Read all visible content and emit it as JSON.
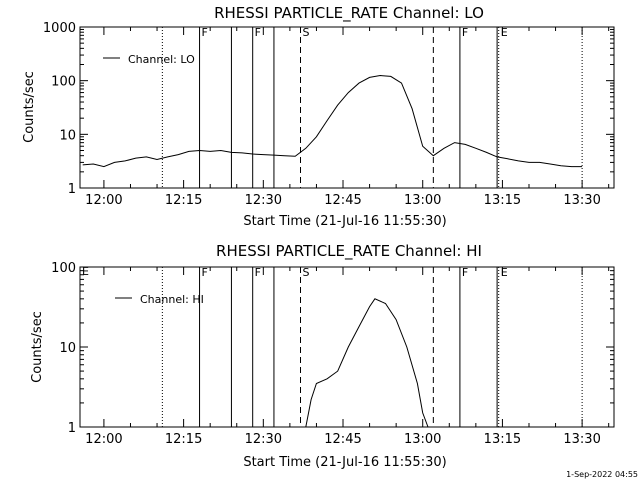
{
  "footer": {
    "timestamp": "1-Sep-2022 04:55"
  },
  "chart_data": [
    {
      "type": "line",
      "title": "RHESSI PARTICLE_RATE Channel: LO",
      "xlabel": "Start Time (21-Jul-16 11:55:30)",
      "ylabel": "Counts/sec",
      "x_ticks": [
        "12:00",
        "12:15",
        "12:30",
        "12:45",
        "13:00",
        "13:15",
        "13:30"
      ],
      "y_scale": "log",
      "ylim": [
        1,
        1000
      ],
      "y_ticks": [
        "1",
        "10",
        "100",
        "1000"
      ],
      "legend": {
        "label": "Channel: LO",
        "position": "top-left"
      },
      "markers": [
        {
          "time": "12:11",
          "style": "dotted",
          "label": ""
        },
        {
          "time": "12:18",
          "style": "solid",
          "label": "F"
        },
        {
          "time": "12:24",
          "style": "solid",
          "label": ""
        },
        {
          "time": "12:28",
          "style": "solid",
          "label": "F"
        },
        {
          "time": "12:32",
          "style": "solid",
          "label": ""
        },
        {
          "time": "12:37",
          "style": "dashed",
          "label": "S"
        },
        {
          "time": "13:02",
          "style": "dashed",
          "label": ""
        },
        {
          "time": "13:07",
          "style": "solid",
          "label": "F"
        },
        {
          "time": "13:14",
          "style": "solid",
          "label": ""
        },
        {
          "time": "13:14.3",
          "style": "dotted",
          "label": "E"
        },
        {
          "time": "13:30",
          "style": "dotted",
          "label": ""
        }
      ],
      "series": [
        {
          "name": "Channel: LO",
          "points": [
            [
              "11:56",
              2.7
            ],
            [
              "11:58",
              2.8
            ],
            [
              "12:00",
              2.5
            ],
            [
              "12:02",
              3.0
            ],
            [
              "12:04",
              3.2
            ],
            [
              "12:06",
              3.6
            ],
            [
              "12:08",
              3.8
            ],
            [
              "12:10",
              3.4
            ],
            [
              "12:12",
              3.8
            ],
            [
              "12:14",
              4.2
            ],
            [
              "12:16",
              4.8
            ],
            [
              "12:18",
              5.0
            ],
            [
              "12:20",
              4.8
            ],
            [
              "12:22",
              5.0
            ],
            [
              "12:24",
              4.6
            ],
            [
              "12:26",
              4.5
            ],
            [
              "12:28",
              4.3
            ],
            [
              "12:30",
              4.2
            ],
            [
              "12:32",
              4.1
            ],
            [
              "12:34",
              4.0
            ],
            [
              "12:36",
              3.9
            ],
            [
              "12:38",
              5.5
            ],
            [
              "12:40",
              9
            ],
            [
              "12:42",
              18
            ],
            [
              "12:44",
              35
            ],
            [
              "12:46",
              60
            ],
            [
              "12:48",
              90
            ],
            [
              "12:50",
              115
            ],
            [
              "12:52",
              125
            ],
            [
              "12:54",
              120
            ],
            [
              "12:56",
              90
            ],
            [
              "12:58",
              30
            ],
            [
              "13:00",
              6
            ],
            [
              "13:02",
              4.0
            ],
            [
              "13:04",
              5.5
            ],
            [
              "13:06",
              7.0
            ],
            [
              "13:08",
              6.5
            ],
            [
              "13:10",
              5.5
            ],
            [
              "13:12",
              4.6
            ],
            [
              "13:14",
              3.8
            ],
            [
              "13:16",
              3.5
            ],
            [
              "13:18",
              3.2
            ],
            [
              "13:20",
              3.0
            ],
            [
              "13:22",
              3.0
            ],
            [
              "13:24",
              2.8
            ],
            [
              "13:26",
              2.6
            ],
            [
              "13:28",
              2.5
            ],
            [
              "13:30",
              2.5
            ]
          ]
        }
      ]
    },
    {
      "type": "line",
      "title": "RHESSI PARTICLE_RATE Channel: HI",
      "xlabel": "Start Time (21-Jul-16 11:55:30)",
      "ylabel": "Counts/sec",
      "x_ticks": [
        "12:00",
        "12:15",
        "12:30",
        "12:45",
        "13:00",
        "13:15",
        "13:30"
      ],
      "y_scale": "log",
      "ylim": [
        1,
        100
      ],
      "y_ticks": [
        "1",
        "10",
        "100"
      ],
      "legend": {
        "label": "Channel: HI",
        "position": "top-left"
      },
      "corner_label": "E",
      "markers": [
        {
          "time": "12:11",
          "style": "dotted",
          "label": ""
        },
        {
          "time": "12:18",
          "style": "solid",
          "label": "F"
        },
        {
          "time": "12:24",
          "style": "solid",
          "label": ""
        },
        {
          "time": "12:28",
          "style": "solid",
          "label": "F"
        },
        {
          "time": "12:32",
          "style": "solid",
          "label": ""
        },
        {
          "time": "12:37",
          "style": "dashed",
          "label": "S"
        },
        {
          "time": "13:02",
          "style": "dashed",
          "label": ""
        },
        {
          "time": "13:07",
          "style": "solid",
          "label": "F"
        },
        {
          "time": "13:14",
          "style": "solid",
          "label": ""
        },
        {
          "time": "13:14.3",
          "style": "dotted",
          "label": "E"
        },
        {
          "time": "13:30",
          "style": "dotted",
          "label": ""
        }
      ],
      "series": [
        {
          "name": "Channel: HI",
          "points": [
            [
              "12:38",
              1.0
            ],
            [
              "12:39",
              2.2
            ],
            [
              "12:40",
              3.5
            ],
            [
              "12:42",
              4.0
            ],
            [
              "12:44",
              5.0
            ],
            [
              "12:46",
              10
            ],
            [
              "12:48",
              18
            ],
            [
              "12:50",
              32
            ],
            [
              "12:51",
              40
            ],
            [
              "12:53",
              35
            ],
            [
              "12:55",
              22
            ],
            [
              "12:57",
              10
            ],
            [
              "12:59",
              3.5
            ],
            [
              "13:00",
              1.5
            ],
            [
              "13:01",
              1.0
            ]
          ]
        }
      ]
    }
  ]
}
